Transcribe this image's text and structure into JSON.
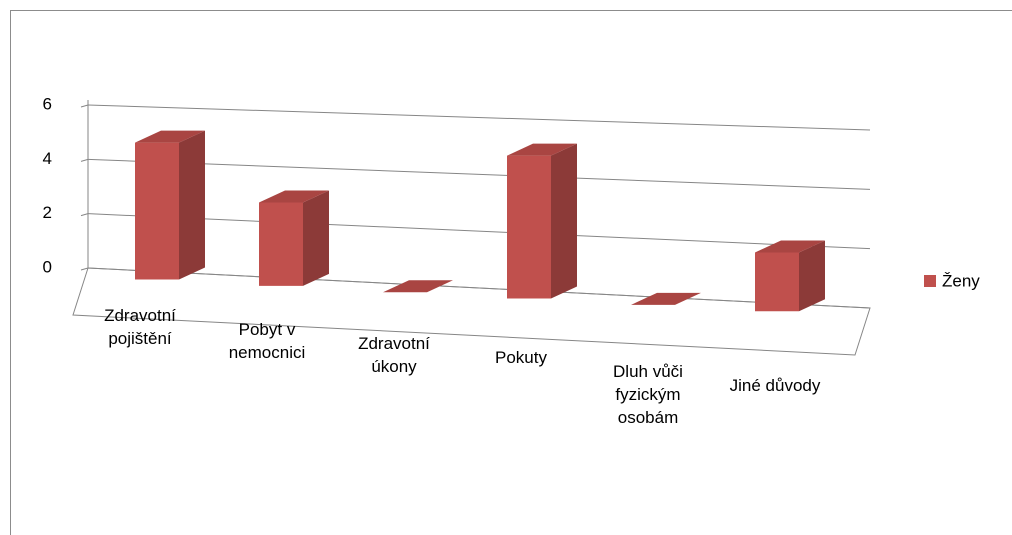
{
  "chart_data": {
    "type": "bar",
    "categories": [
      "Zdravotní pojištění",
      "Pobyt v nemocnici",
      "Zdravotní úkony",
      "Pokuty",
      "Dluh vůči fyzickým osobám",
      "Jiné důvody"
    ],
    "series": [
      {
        "name": "Ženy",
        "color": "#c0504d",
        "values": [
          5,
          3,
          0,
          5,
          0,
          2
        ]
      }
    ],
    "ylim": [
      0,
      6
    ],
    "yticks": [
      0,
      2,
      4,
      6
    ],
    "grid": true,
    "legend": "right"
  }
}
